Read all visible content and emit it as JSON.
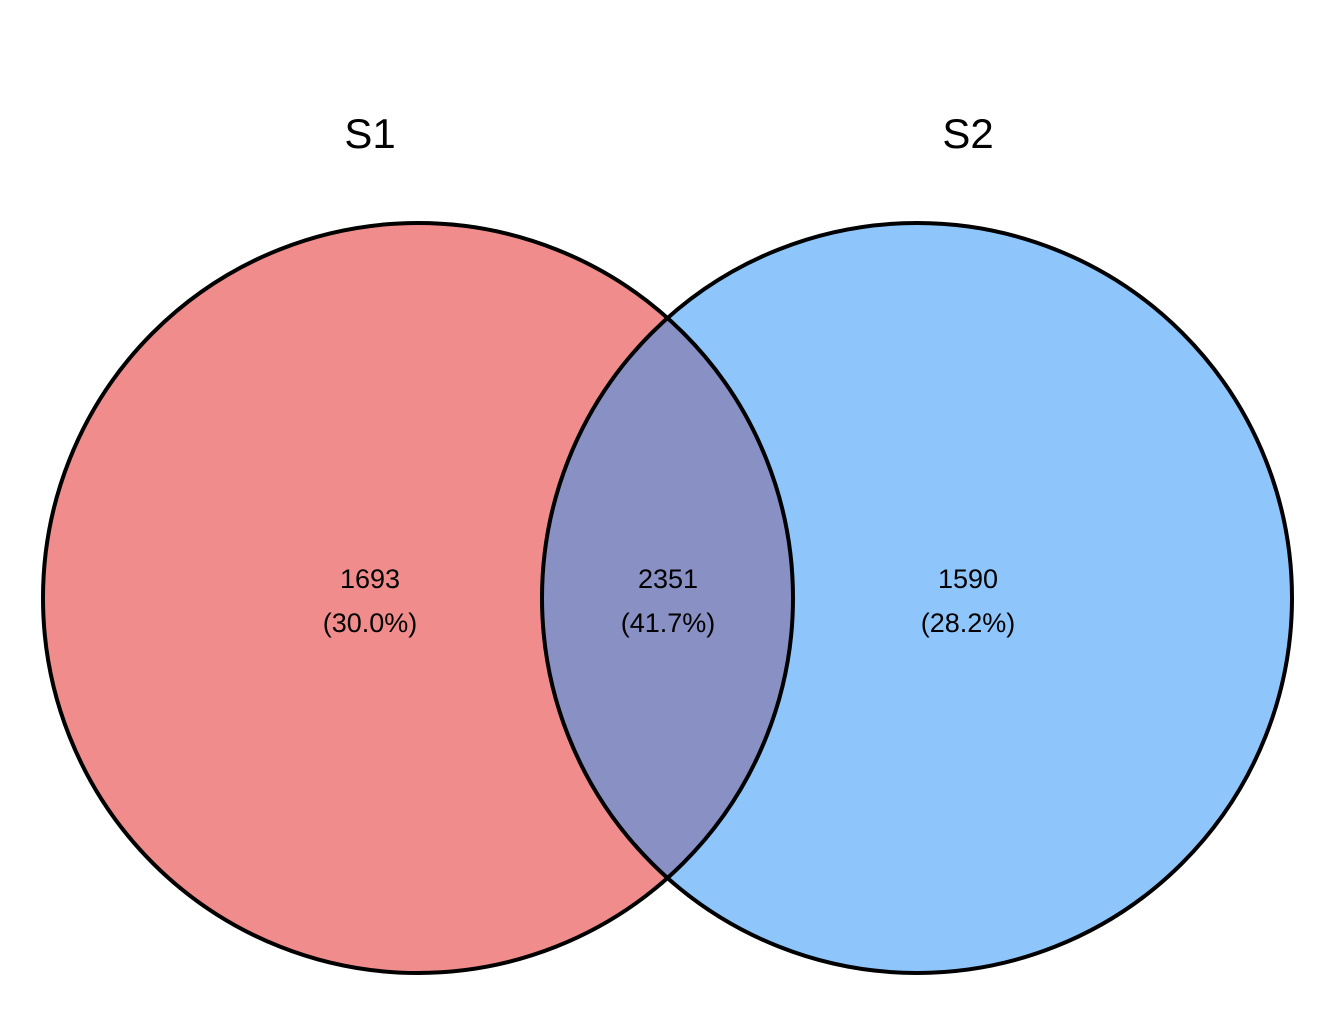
{
  "venn": {
    "sets": [
      {
        "label": "S1",
        "color": "#F08C8C"
      },
      {
        "label": "S2",
        "color": "#8EC6FC"
      }
    ],
    "overlap_color": "#8890C4",
    "outline_color": "#000000",
    "regions": {
      "s1_only": {
        "count": "1693",
        "percent": "(30.0%)"
      },
      "intersection": {
        "count": "2351",
        "percent": "(41.7%)"
      },
      "s2_only": {
        "count": "1590",
        "percent": "(28.2%)"
      }
    }
  }
}
